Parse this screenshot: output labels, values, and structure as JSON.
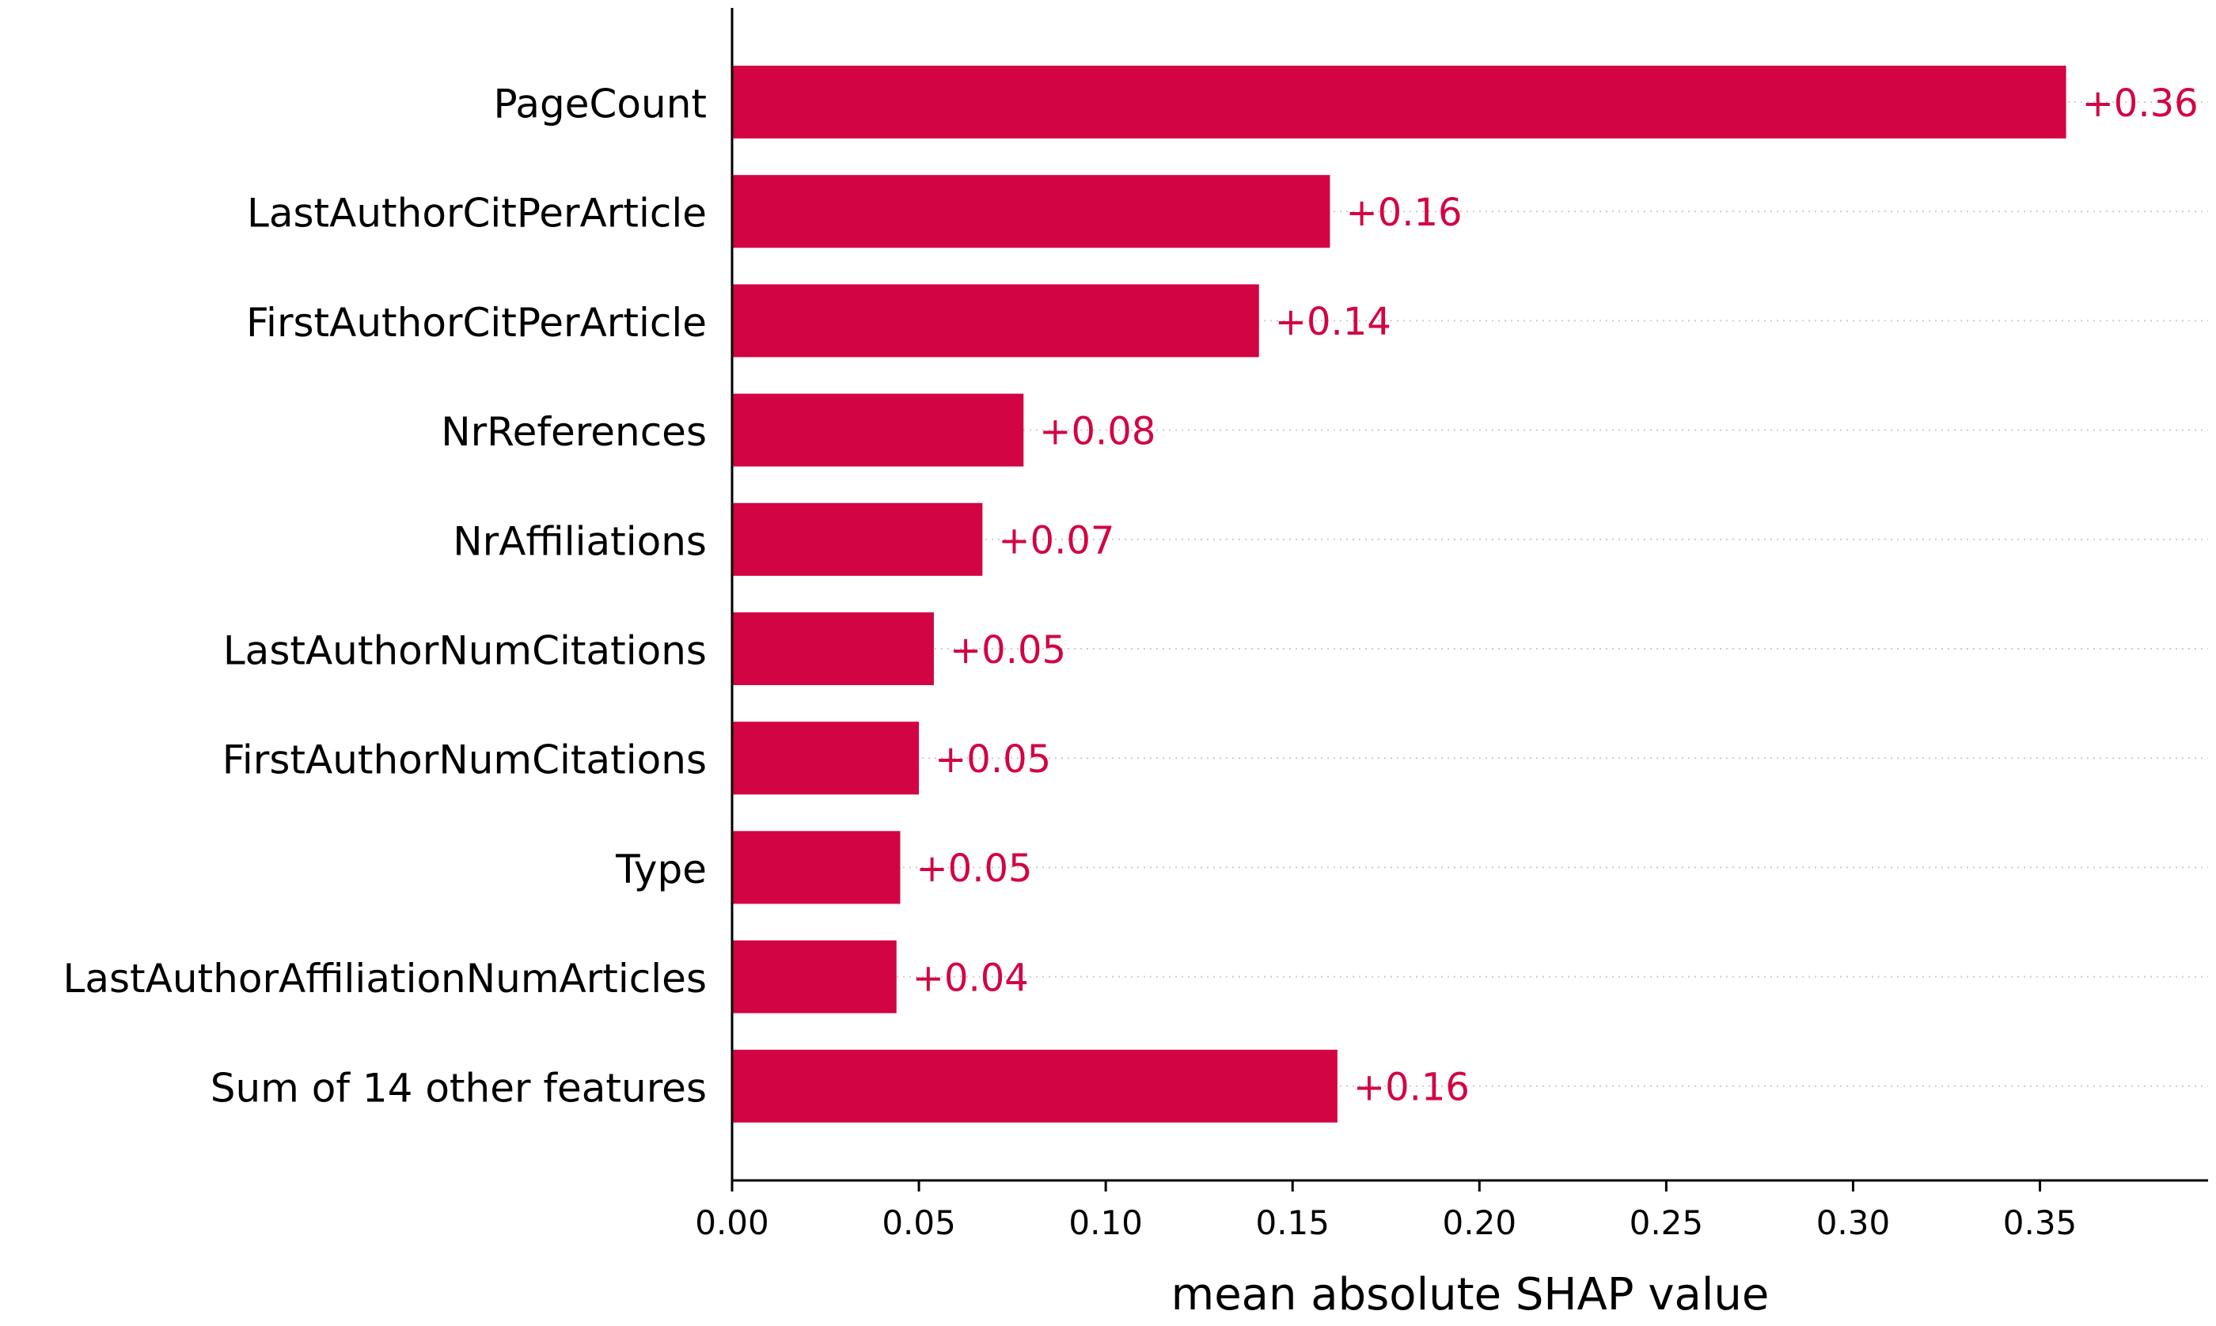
{
  "chart_data": {
    "type": "bar",
    "orientation": "horizontal",
    "categories": [
      "PageCount",
      "LastAuthorCitPerArticle",
      "FirstAuthorCitPerArticle",
      "NrReferences",
      "NrAffiliations",
      "LastAuthorNumCitations",
      "FirstAuthorNumCitations",
      "Type",
      "LastAuthorAffiliationNumArticles",
      "Sum of 14 other features"
    ],
    "values": [
      0.357,
      0.16,
      0.141,
      0.078,
      0.067,
      0.054,
      0.05,
      0.045,
      0.044,
      0.162
    ],
    "value_labels": [
      "+0.36",
      "+0.16",
      "+0.14",
      "+0.08",
      "+0.07",
      "+0.05",
      "+0.05",
      "+0.05",
      "+0.04",
      "+0.16"
    ],
    "title": "",
    "xlabel": "mean absolute SHAP value",
    "ylabel": "",
    "xlim": [
      0,
      0.395
    ],
    "xticks": [
      "0.00",
      "0.05",
      "0.10",
      "0.15",
      "0.20",
      "0.25",
      "0.30",
      "0.35"
    ],
    "grid": "dotted row guides",
    "legend": "none",
    "colors": {
      "bar": "#d30443",
      "value_label": "#d30443",
      "axis": "#000000",
      "tick_label": "#000000",
      "category_label": "#000000",
      "guide": "#cccccc"
    }
  }
}
